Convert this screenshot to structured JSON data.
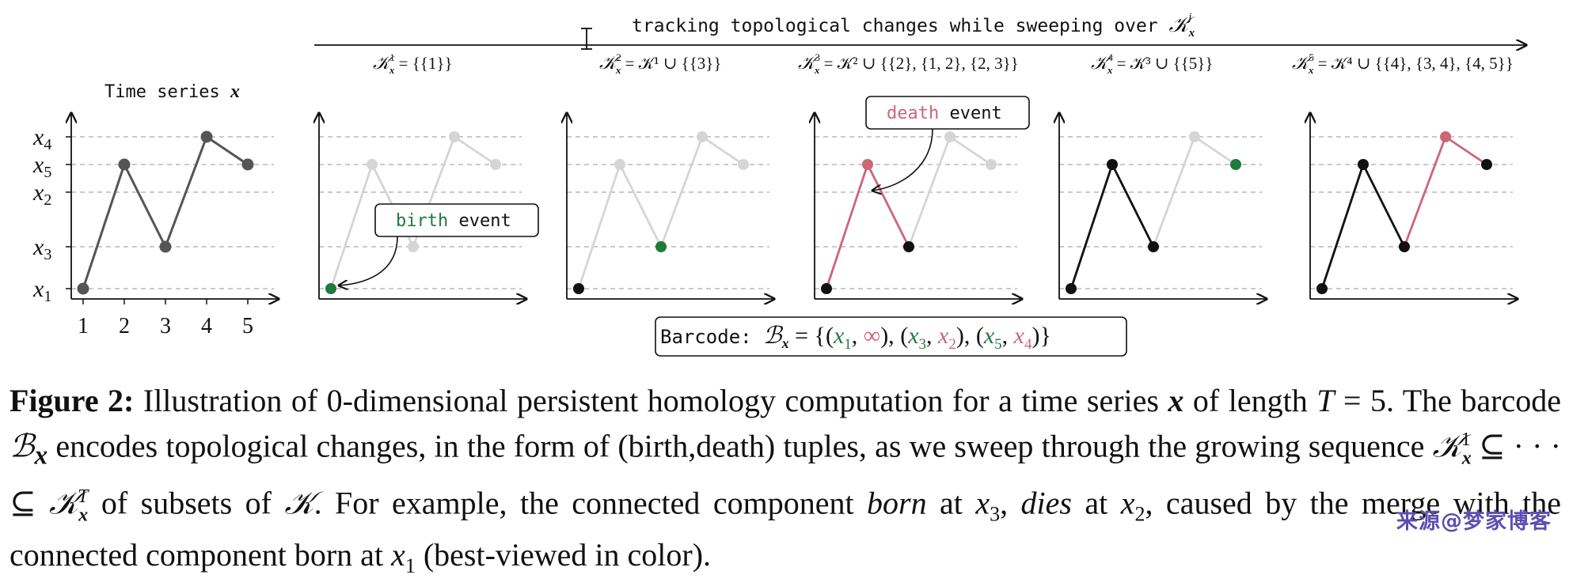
{
  "colors": {
    "birth": "#1f7a3c",
    "death": "#cc6677",
    "line": "#555555",
    "light": "#d5d5d5",
    "black": "#111111"
  },
  "header": {
    "tracking_text": "tracking topological changes while sweeping over",
    "tracking_symbol": "𝒦",
    "tracking_sub": "x",
    "tracking_sup": "j"
  },
  "series_title": {
    "text": "Time series",
    "symbol": "x"
  },
  "set_formulas": [
    {
      "lhs": "𝒦",
      "sup": "1",
      "rhs": " = {{1}}"
    },
    {
      "lhs": "𝒦",
      "sup": "2",
      "rhs": " = 𝒦¹ ∪ {{3}}"
    },
    {
      "lhs": "𝒦",
      "sup": "3",
      "rhs": " = 𝒦² ∪ {{2}, {1, 2}, {2, 3}}"
    },
    {
      "lhs": "𝒦",
      "sup": "4",
      "rhs": " = 𝒦³ ∪ {{5}}"
    },
    {
      "lhs": "𝒦",
      "sup": "5",
      "rhs": " = 𝒦⁴ ∪ {{4}, {3, 4}, {4, 5}}"
    }
  ],
  "y_labels": [
    "x4",
    "x5",
    "x2",
    "x3",
    "x1"
  ],
  "x_ticks": [
    "1",
    "2",
    "3",
    "4",
    "5"
  ],
  "series_values": [
    1,
    4,
    2,
    5,
    4
  ],
  "callouts": {
    "birth_word": "birth",
    "birth_rest": " event",
    "death_word": "death",
    "death_rest": " event"
  },
  "barcode": {
    "prefix": "Barcode:",
    "symbol": "ℬ",
    "sub": "x",
    "pairs": [
      {
        "birth": "x1",
        "death": "∞"
      },
      {
        "birth": "x3",
        "death": "x2"
      },
      {
        "birth": "x5",
        "death": "x4"
      }
    ]
  },
  "caption": {
    "label": "Figure 2:",
    "s1": " Illustration of 0-dimensional persistent homology computation for a time series ",
    "x": "x",
    "s2": " of length ",
    "T": "T",
    "s3": " = 5. The barcode ",
    "B": "ℬ",
    "s4": " encodes topological changes, in the form of (birth,death) tuples, as we sweep through the growing sequence ",
    "seq": "𝒦",
    "s5": " ⊆ · · · ⊆ ",
    "s6": " of subsets of ",
    "K": "𝒦",
    "s7": ". For example, the connected component ",
    "born": "born",
    "s8": " at ",
    "x3": "x",
    "x3sub": "3",
    "s9": ", ",
    "dies": "dies",
    "s10": " at ",
    "x2": "x",
    "x2sub": "2",
    "s11": ", caused by the merge with the connected component born at ",
    "x1": "x",
    "x1sub": "1",
    "s12": " (best-viewed in color)."
  },
  "watermark": "来源@梦家博客"
}
